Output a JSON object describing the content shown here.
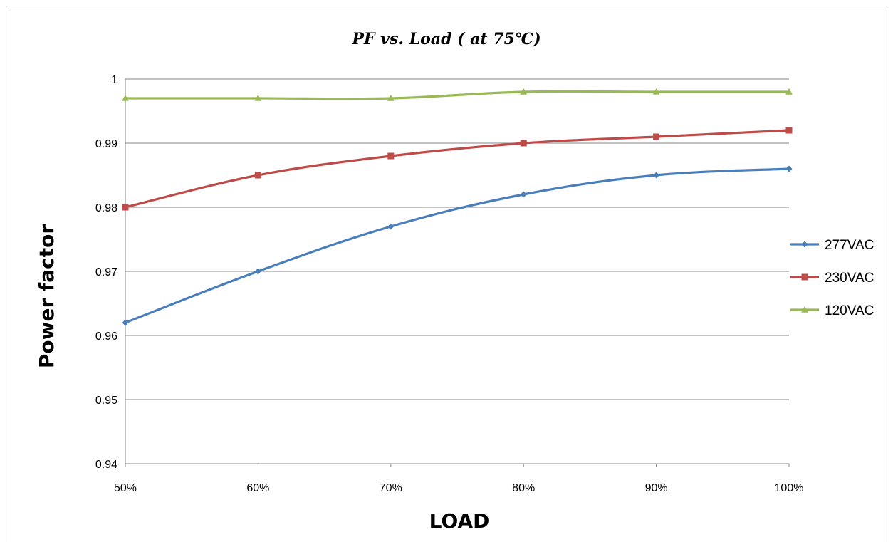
{
  "chart_data": {
    "type": "line",
    "title": "PF vs. Load ( at 75℃)",
    "xlabel": "LOAD",
    "ylabel": "Power factor",
    "categories": [
      "50%",
      "60%",
      "70%",
      "80%",
      "90%",
      "100%"
    ],
    "y_ticks": [
      "0.94",
      "0.95",
      "0.96",
      "0.97",
      "0.98",
      "0.99",
      "1"
    ],
    "ylim": [
      0.94,
      1.0
    ],
    "grid": "horizontal",
    "legend_position": "right",
    "series": [
      {
        "name": "277VAC",
        "color": "#4a7ebb",
        "marker": "diamond",
        "values": [
          0.962,
          0.97,
          0.977,
          0.982,
          0.985,
          0.986
        ]
      },
      {
        "name": "230VAC",
        "color": "#be4b48",
        "marker": "square",
        "values": [
          0.98,
          0.985,
          0.988,
          0.99,
          0.991,
          0.992
        ]
      },
      {
        "name": "120VAC",
        "color": "#98b954",
        "marker": "triangle",
        "values": [
          0.997,
          0.997,
          0.997,
          0.998,
          0.998,
          0.998
        ]
      }
    ]
  }
}
